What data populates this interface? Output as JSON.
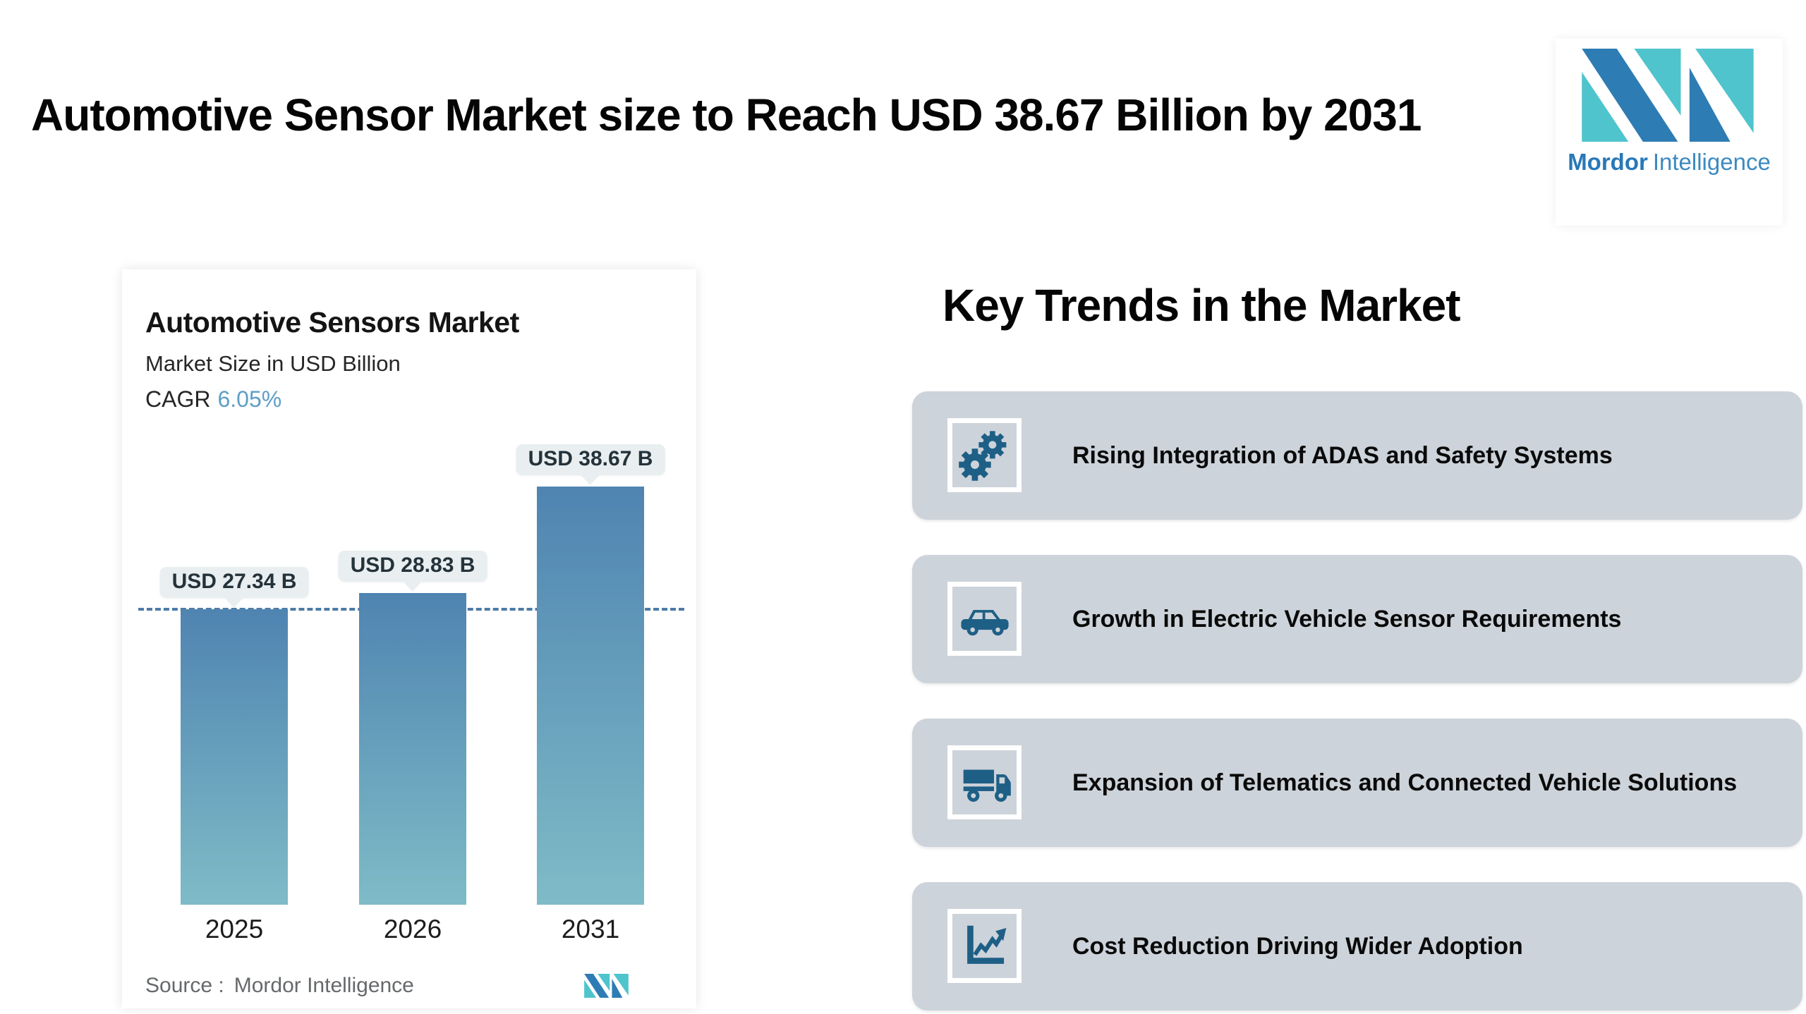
{
  "page": {
    "title": "Automotive Sensor Market size to Reach USD 38.67 Billion by 2031"
  },
  "logo": {
    "brand_bold": "Mordor",
    "brand_light": "Intelligence"
  },
  "chart_data": {
    "type": "bar",
    "title": "Automotive Sensors Market",
    "subtitle": "Market Size in USD Billion",
    "cagr_label": "CAGR",
    "cagr": "6.05%",
    "categories": [
      "2025",
      "2026",
      "2031"
    ],
    "values": [
      27.34,
      28.83,
      38.67
    ],
    "bar_labels": [
      "USD 27.34 B",
      "USD 28.83 B",
      "USD 38.67 B"
    ],
    "dashed_reference_value": 27.34,
    "ylabel": "USD Billion",
    "legend": "none",
    "grid": "off",
    "source_label": "Source :",
    "source": "Mordor Intelligence",
    "bar_gradient_top": "#4f84b1",
    "bar_gradient_bottom": "#7fbbc7",
    "dashed_line_color": "#4d7ba6",
    "bubble_bg": "#e9eef0"
  },
  "trends": {
    "heading": "Key Trends in the Market",
    "card_color": "#cdd3da",
    "icon_color": "#1e5f86",
    "items": [
      {
        "label": "Rising Integration of ADAS and Safety Systems",
        "icon": "gears-icon"
      },
      {
        "label": "Growth in Electric Vehicle Sensor Requirements",
        "icon": "car-icon"
      },
      {
        "label": "Expansion of Telematics and Connected Vehicle Solutions",
        "icon": "truck-icon"
      },
      {
        "label": "Cost Reduction Driving Wider Adoption",
        "icon": "chart-line-icon"
      }
    ]
  }
}
